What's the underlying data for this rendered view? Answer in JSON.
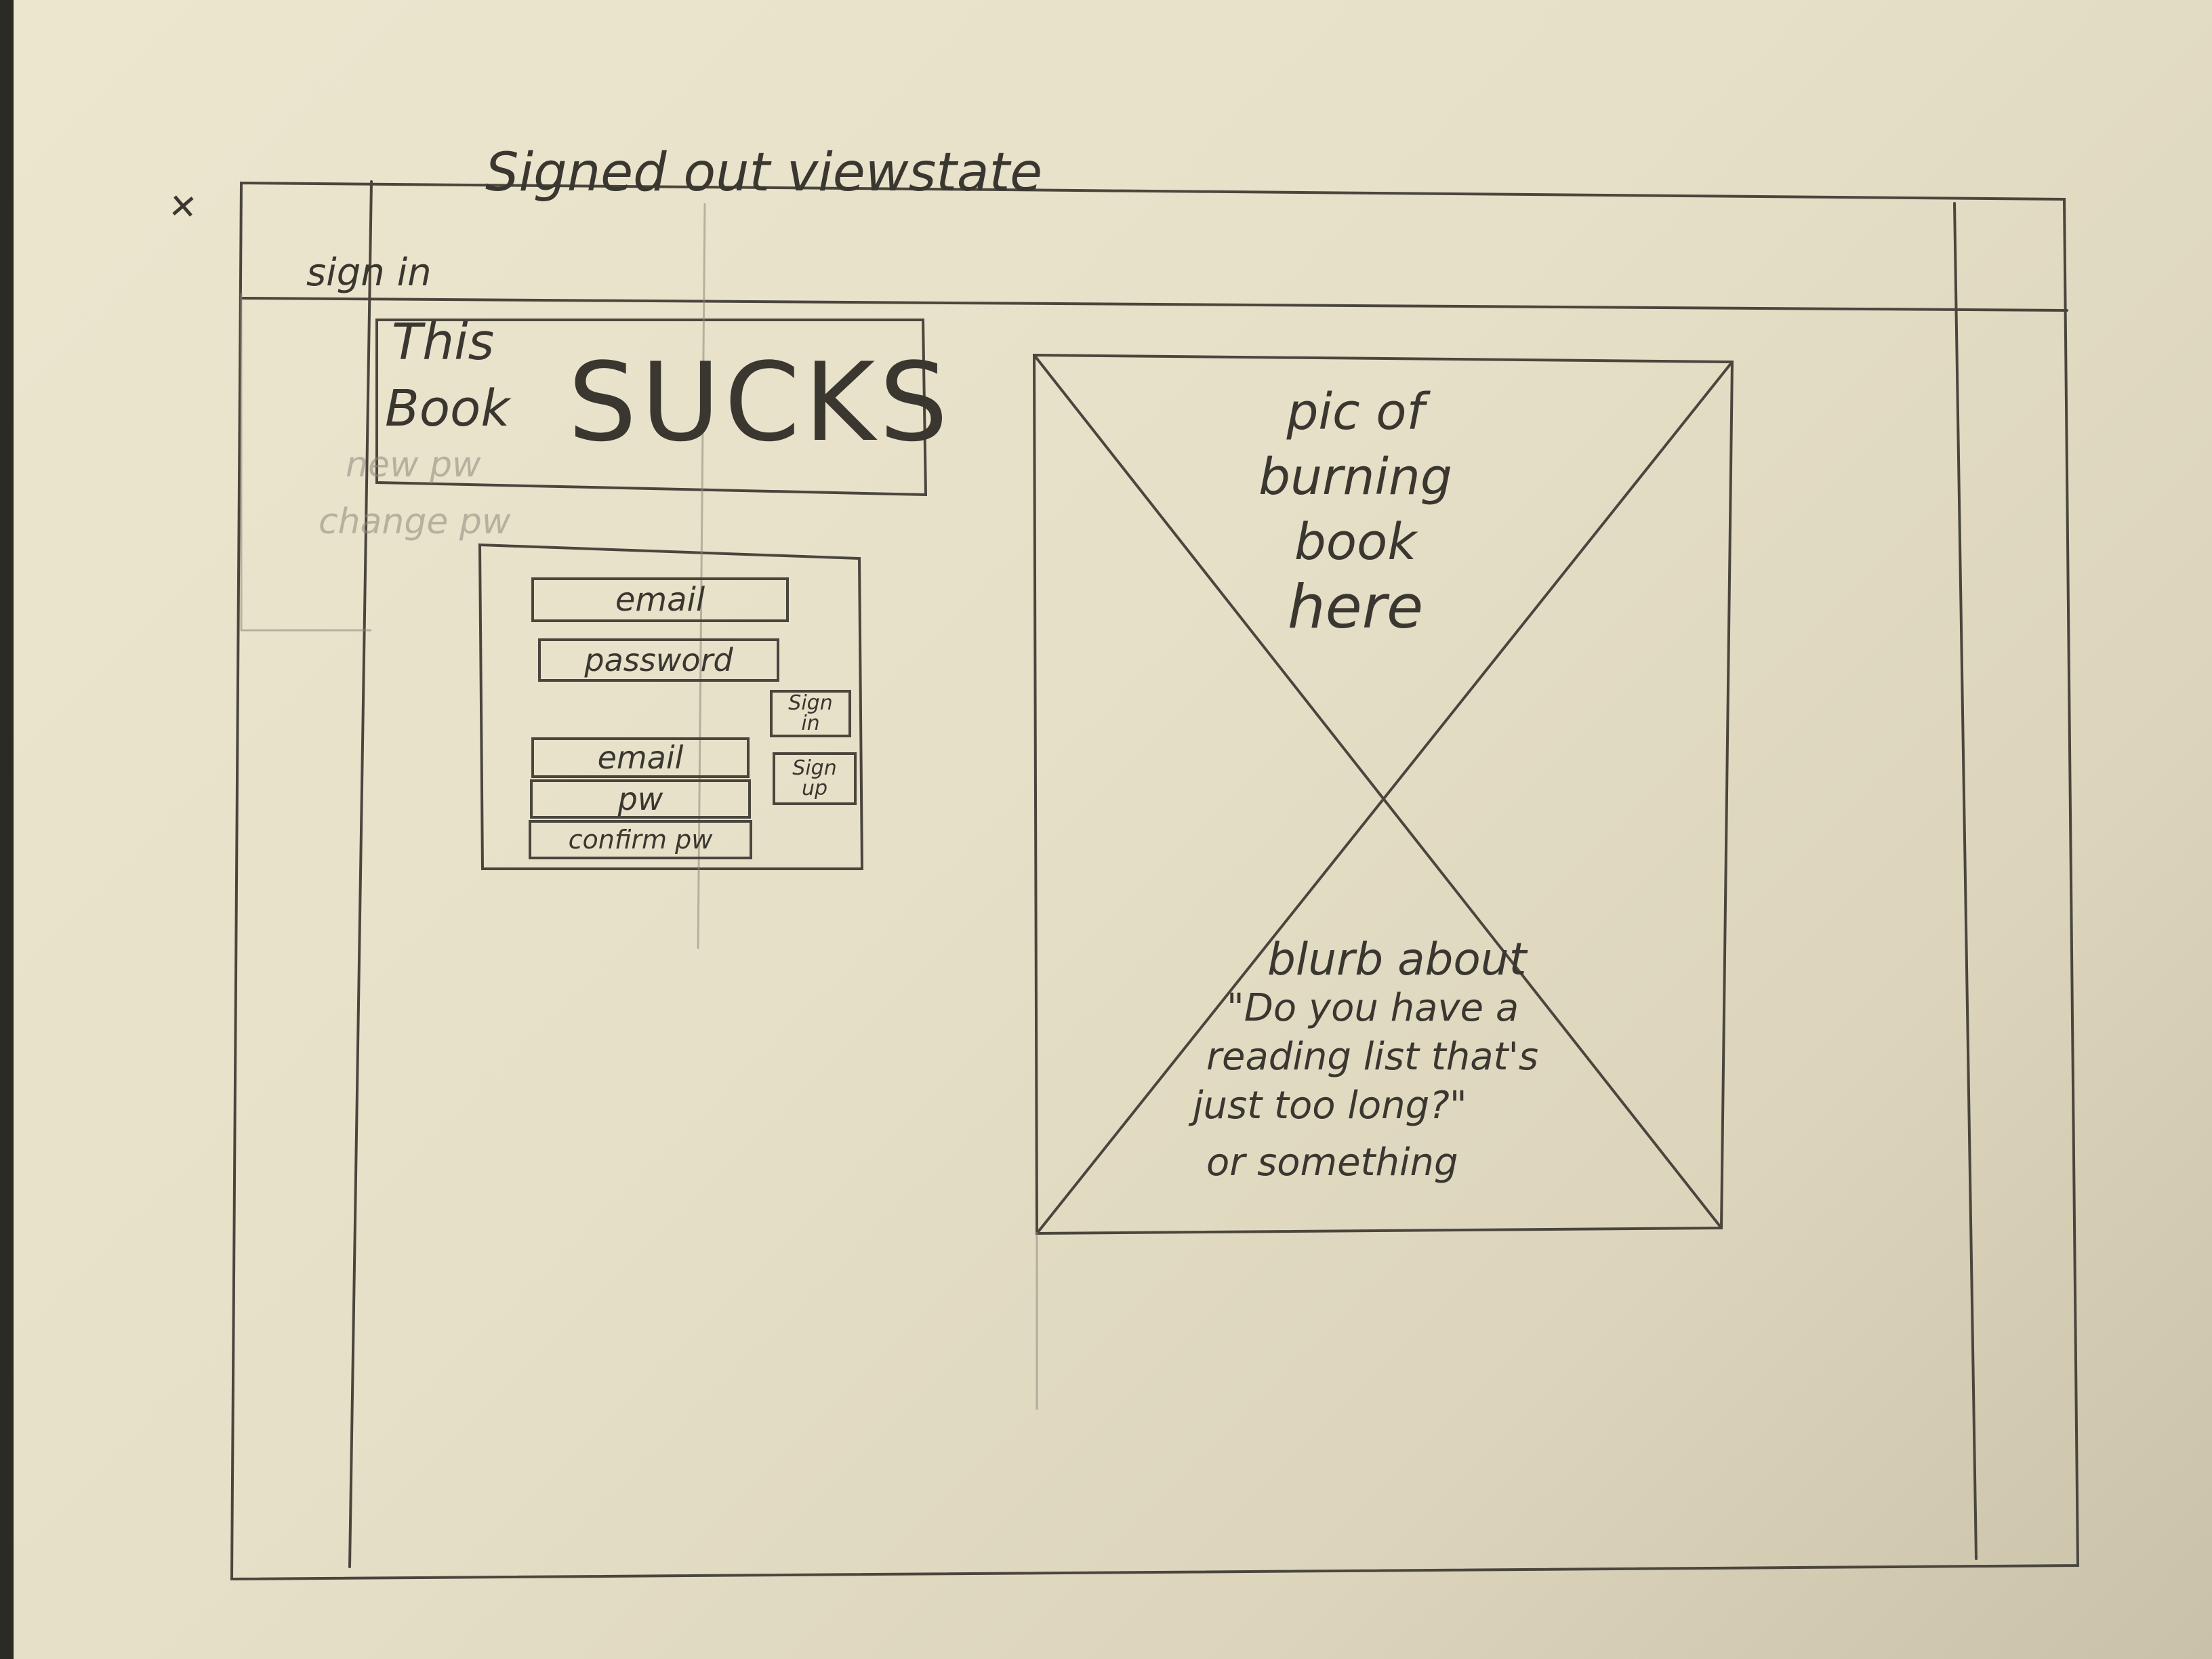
{
  "page_title": "Signed out viewstate",
  "header": {
    "sign_in_link": "sign in"
  },
  "faint_menu": {
    "new_pw": "new pw",
    "change_pw": "change pw"
  },
  "hero": {
    "line1": "This",
    "line2": "Book",
    "big_word": "SUCKS"
  },
  "signin_form": {
    "email_placeholder": "email",
    "password_placeholder": "password",
    "sign_in_button": "Sign in"
  },
  "signup_form": {
    "email_placeholder": "email",
    "pw_placeholder": "pw",
    "confirm_pw_placeholder": "confirm pw",
    "sign_up_button": "Sign up"
  },
  "image_placeholder": {
    "caption_lines": [
      "pic of",
      "burning",
      "book",
      "here"
    ],
    "blurb_lines": [
      "blurb about",
      "\"Do you have a",
      "reading list that's",
      "just too long?\"",
      "or something"
    ]
  },
  "colors": {
    "paper": "#e9e3cb",
    "pencil": "#3a3730"
  }
}
